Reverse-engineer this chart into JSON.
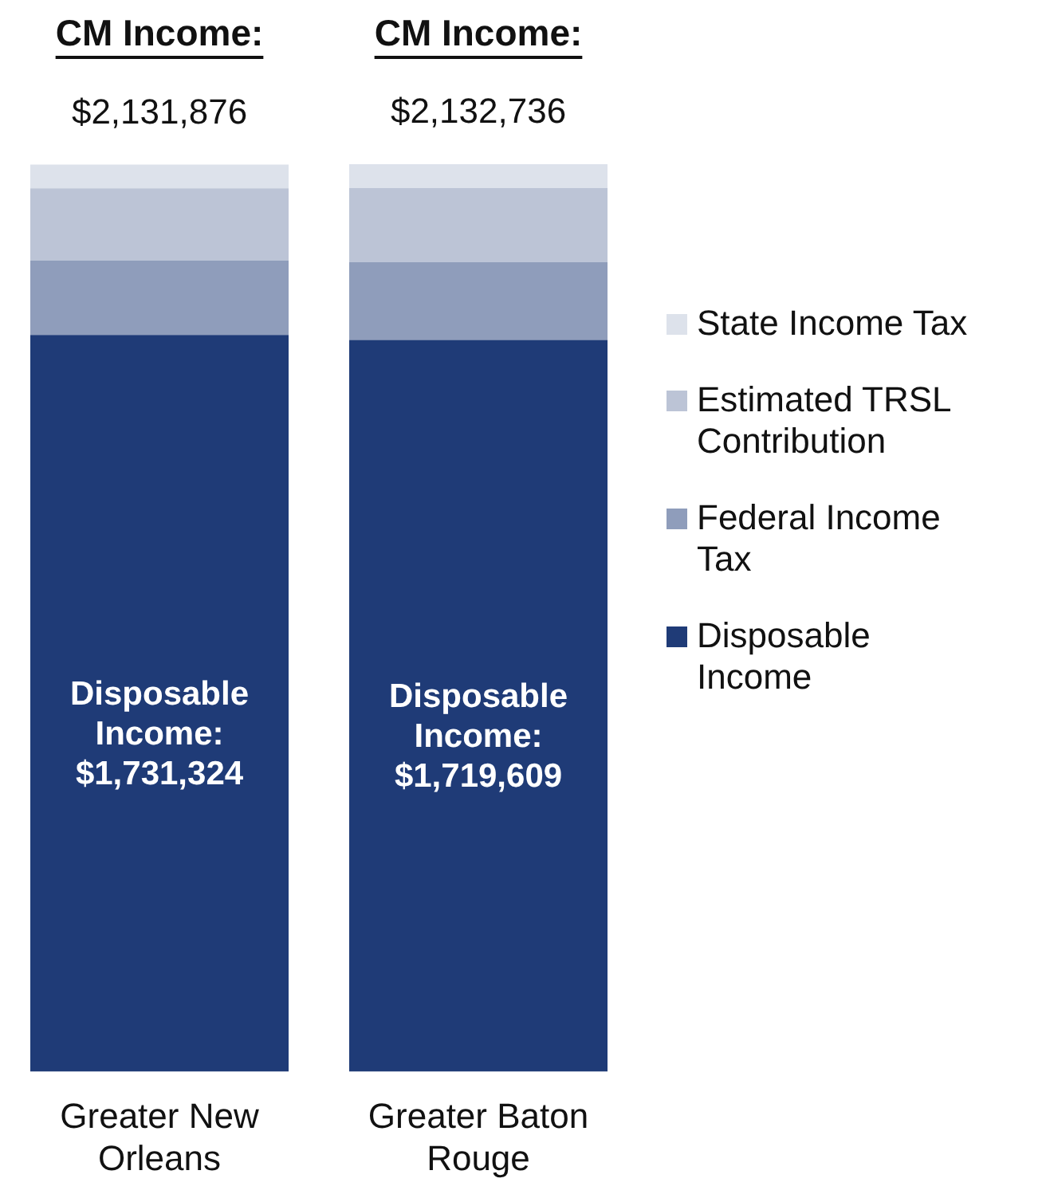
{
  "chart_data": {
    "type": "bar",
    "stacked": true,
    "legend": "right",
    "categories": [
      "Greater New Orleans",
      "Greater Baton Rouge"
    ],
    "series": [
      {
        "name": "Disposable Income",
        "color": "#1f3b77",
        "values": [
          1731324,
          1719609
        ],
        "value_labels": [
          "Disposable Income: $1,731,324",
          "Disposable Income: $1,719,609"
        ]
      },
      {
        "name": "Federal Income Tax",
        "color": "#8f9dbb",
        "values": [
          174552,
          183127
        ]
      },
      {
        "name": "Estimated TRSL Contribution",
        "color": "#bcc4d6",
        "values": [
          170000,
          174000
        ]
      },
      {
        "name": "State Income Tax",
        "color": "#dde2eb",
        "values": [
          56000,
          56000
        ]
      }
    ],
    "totals": [
      "$2,131,876",
      "$2,132,736"
    ],
    "annotations": [
      "CM Income:",
      "CM Income:"
    ]
  }
}
